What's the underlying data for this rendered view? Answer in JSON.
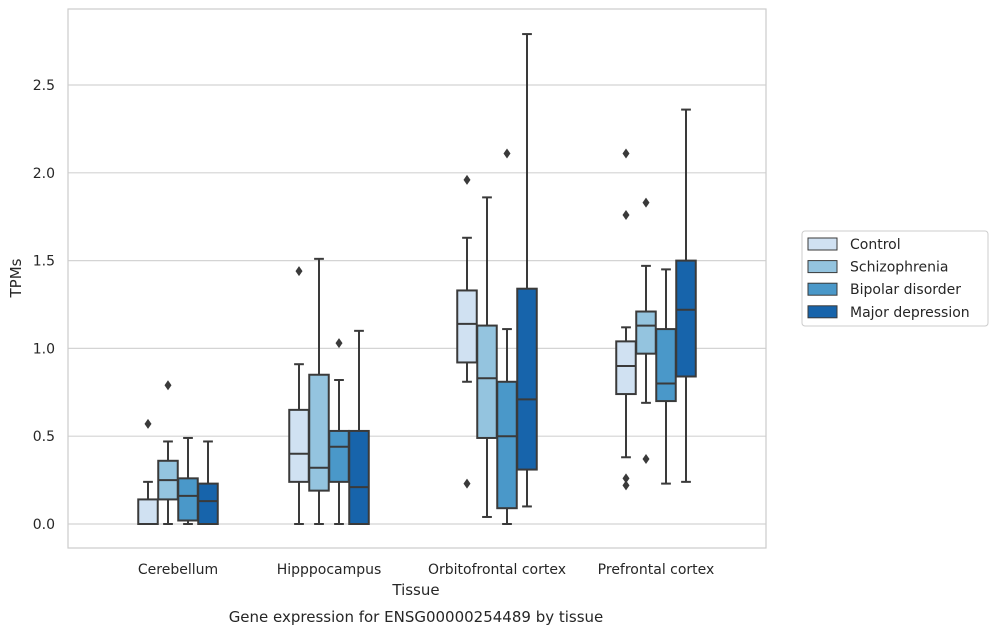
{
  "chart_data": {
    "type": "box",
    "caption": "Gene expression for ENSG00000254489 by tissue",
    "xlabel": "Tissue",
    "ylabel": "TPMs",
    "ylim": [
      -0.13,
      2.94
    ],
    "yticks": [
      0.0,
      0.5,
      1.0,
      1.5,
      2.0,
      2.5
    ],
    "ytick_labels": [
      "0.0",
      "0.5",
      "1.0",
      "1.5",
      "2.0",
      "2.5"
    ],
    "grid": "horizontal",
    "legend_position": "right",
    "categories": [
      "Cerebellum",
      "Hipppocampus",
      "Orbitofrontal cortex",
      "Prefrontal cortex"
    ],
    "series": [
      {
        "name": "Control",
        "color": "#d0e1f2",
        "boxes": [
          {
            "whislo": 0.0,
            "q1": 0.0,
            "med": 0.0,
            "q3": 0.14,
            "whishi": 0.24,
            "fliers": [
              0.57
            ]
          },
          {
            "whislo": 0.0,
            "q1": 0.24,
            "med": 0.4,
            "q3": 0.65,
            "whishi": 0.91,
            "fliers": [
              1.44
            ]
          },
          {
            "whislo": 0.81,
            "q1": 0.92,
            "med": 1.14,
            "q3": 1.33,
            "whishi": 1.63,
            "fliers": [
              1.96,
              0.23
            ]
          },
          {
            "whislo": 0.38,
            "q1": 0.74,
            "med": 0.9,
            "q3": 1.04,
            "whishi": 1.12,
            "fliers": [
              2.11,
              1.76,
              0.26,
              0.22
            ]
          }
        ]
      },
      {
        "name": "Schizophrenia",
        "color": "#94c4df",
        "boxes": [
          {
            "whislo": 0.0,
            "q1": 0.14,
            "med": 0.25,
            "q3": 0.36,
            "whishi": 0.47,
            "fliers": [
              0.79
            ]
          },
          {
            "whislo": 0.0,
            "q1": 0.19,
            "med": 0.32,
            "q3": 0.85,
            "whishi": 1.51,
            "fliers": []
          },
          {
            "whislo": 0.04,
            "q1": 0.49,
            "med": 0.83,
            "q3": 1.13,
            "whishi": 1.86,
            "fliers": []
          },
          {
            "whislo": 0.69,
            "q1": 0.97,
            "med": 1.13,
            "q3": 1.21,
            "whishi": 1.47,
            "fliers": [
              1.83,
              0.37
            ]
          }
        ]
      },
      {
        "name": "Bipolar disorder",
        "color": "#4a98c9",
        "boxes": [
          {
            "whislo": 0.0,
            "q1": 0.02,
            "med": 0.16,
            "q3": 0.26,
            "whishi": 0.49,
            "fliers": []
          },
          {
            "whislo": 0.0,
            "q1": 0.24,
            "med": 0.44,
            "q3": 0.53,
            "whishi": 0.82,
            "fliers": [
              1.03
            ]
          },
          {
            "whislo": 0.0,
            "q1": 0.09,
            "med": 0.5,
            "q3": 0.81,
            "whishi": 1.11,
            "fliers": [
              2.11
            ]
          },
          {
            "whislo": 0.23,
            "q1": 0.7,
            "med": 0.8,
            "q3": 1.11,
            "whishi": 1.45,
            "fliers": []
          }
        ]
      },
      {
        "name": "Major depression",
        "color": "#1764ab",
        "boxes": [
          {
            "whislo": 0.0,
            "q1": 0.0,
            "med": 0.13,
            "q3": 0.23,
            "whishi": 0.47,
            "fliers": []
          },
          {
            "whislo": 0.0,
            "q1": 0.0,
            "med": 0.21,
            "q3": 0.53,
            "whishi": 1.1,
            "fliers": []
          },
          {
            "whislo": 0.1,
            "q1": 0.31,
            "med": 0.71,
            "q3": 1.34,
            "whishi": 2.79,
            "fliers": []
          },
          {
            "whislo": 0.24,
            "q1": 0.84,
            "med": 1.22,
            "q3": 1.5,
            "whishi": 2.36,
            "fliers": []
          }
        ]
      }
    ]
  }
}
